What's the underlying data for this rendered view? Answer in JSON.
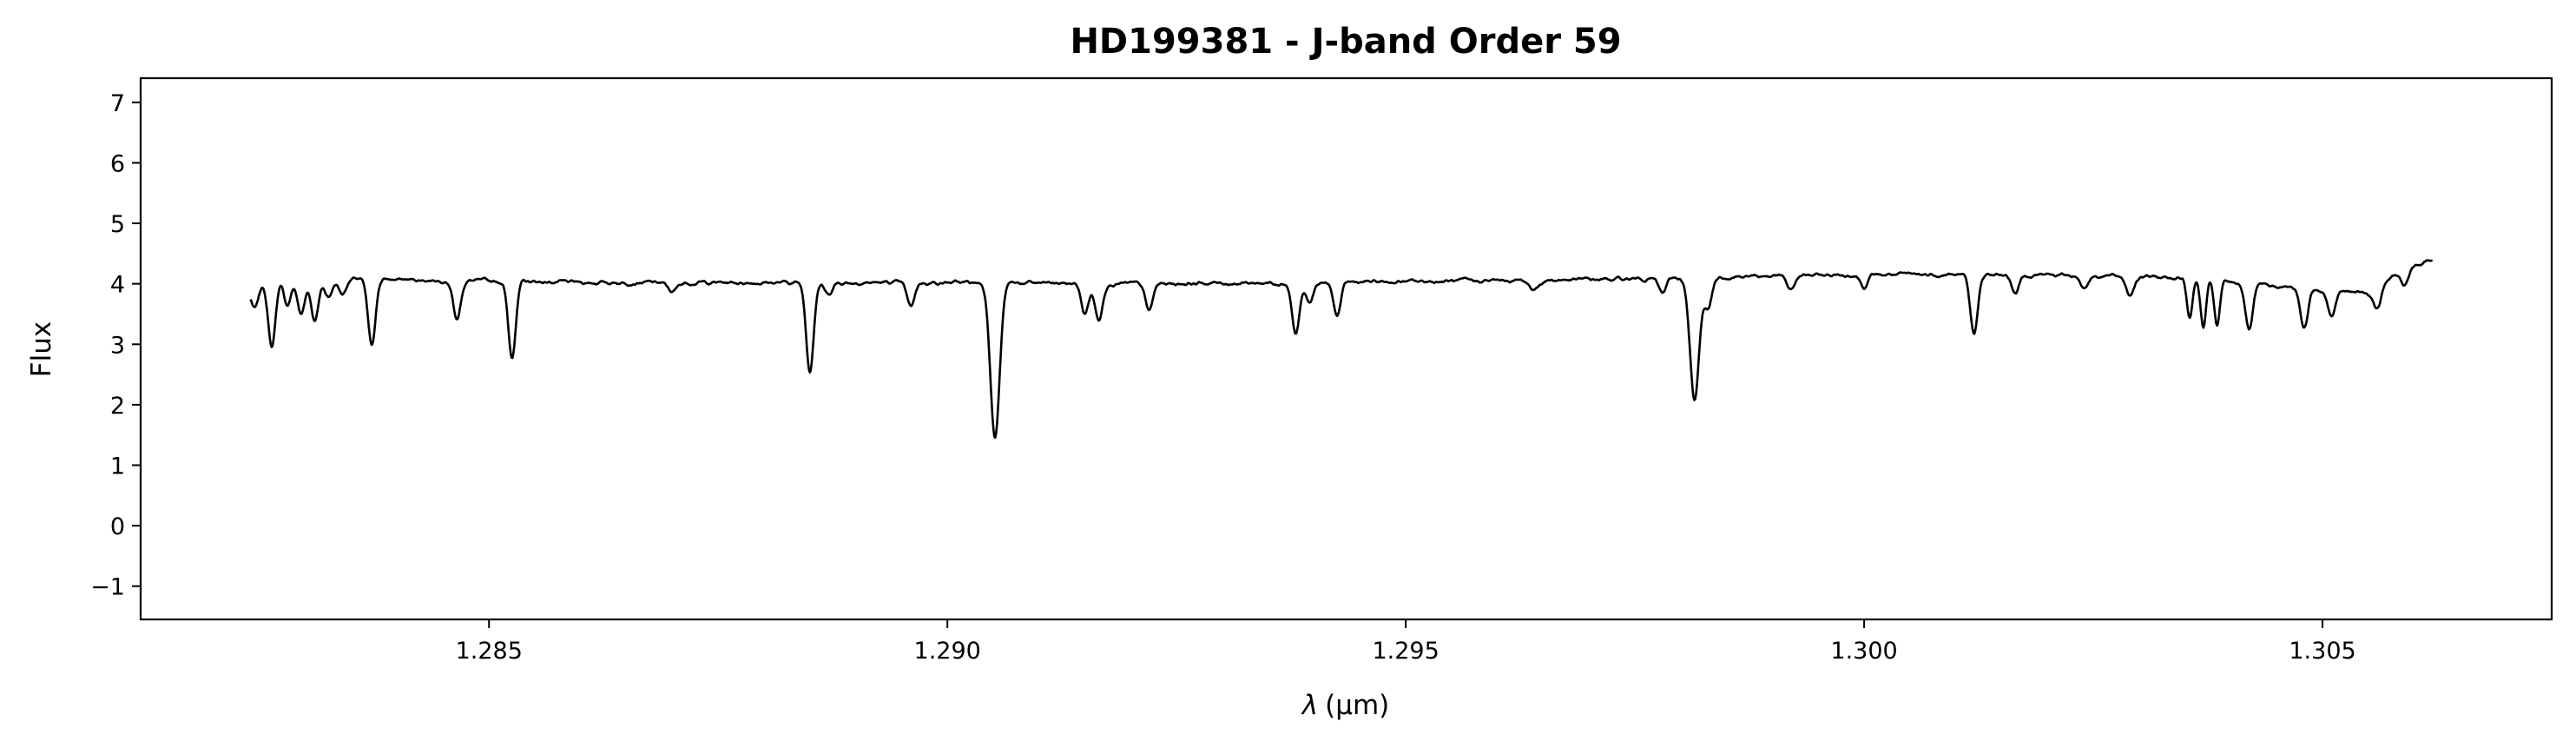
{
  "chart_data": {
    "type": "line",
    "title": "HD199381 - J-band Order 59",
    "xlabel": "λ (μm)",
    "xlabel_symbol": "λ",
    "xlabel_unit": "(μm)",
    "ylabel": "Flux",
    "xlim": [
      1.2812,
      1.3075
    ],
    "ylim": [
      -1.55,
      7.4
    ],
    "xticks": [
      1.285,
      1.29,
      1.295,
      1.3,
      1.305
    ],
    "xtick_labels": [
      "1.285",
      "1.290",
      "1.295",
      "1.300",
      "1.305"
    ],
    "yticks": [
      -1,
      0,
      1,
      2,
      3,
      4,
      5,
      6,
      7
    ],
    "ytick_labels": [
      "−1",
      "0",
      "1",
      "2",
      "3",
      "4",
      "5",
      "6",
      "7"
    ],
    "grid": false,
    "line_color": "#000000",
    "series": [
      {
        "x_range": [
          1.2824,
          1.3062
        ],
        "continuum": [
          [
            1.2824,
            3.9
          ],
          [
            1.2826,
            4.1
          ],
          [
            1.284,
            4.07
          ],
          [
            1.286,
            4.02
          ],
          [
            1.288,
            4.02
          ],
          [
            1.29,
            4.02
          ],
          [
            1.292,
            4.0
          ],
          [
            1.294,
            4.02
          ],
          [
            1.296,
            4.05
          ],
          [
            1.2975,
            4.08
          ],
          [
            1.2985,
            4.12
          ],
          [
            1.3,
            4.15
          ],
          [
            1.302,
            4.15
          ],
          [
            1.3035,
            4.1
          ],
          [
            1.3045,
            3.95
          ],
          [
            1.3055,
            3.85
          ],
          [
            1.3058,
            4.15
          ],
          [
            1.3062,
            4.42
          ]
        ],
        "absorption_lines": [
          {
            "x": 1.28245,
            "depth": 0.35,
            "width": 4e-05
          },
          {
            "x": 1.28263,
            "depth": 1.15,
            "width": 4e-05
          },
          {
            "x": 1.2828,
            "depth": 0.45,
            "width": 4e-05
          },
          {
            "x": 1.28295,
            "depth": 0.6,
            "width": 4e-05
          },
          {
            "x": 1.2831,
            "depth": 0.7,
            "width": 4e-05
          },
          {
            "x": 1.28325,
            "depth": 0.3,
            "width": 4e-05
          },
          {
            "x": 1.2834,
            "depth": 0.25,
            "width": 4e-05
          },
          {
            "x": 1.28372,
            "depth": 1.1,
            "width": 4e-05
          },
          {
            "x": 1.28465,
            "depth": 0.65,
            "width": 4e-05
          },
          {
            "x": 1.28525,
            "depth": 1.25,
            "width": 4e-05
          },
          {
            "x": 1.287,
            "depth": 0.15,
            "width": 5e-05
          },
          {
            "x": 1.2885,
            "depth": 1.45,
            "width": 4e-05
          },
          {
            "x": 1.2887,
            "depth": 0.2,
            "width": 4e-05
          },
          {
            "x": 1.2896,
            "depth": 0.4,
            "width": 4e-05
          },
          {
            "x": 1.29052,
            "depth": 2.55,
            "width": 5e-05
          },
          {
            "x": 1.2915,
            "depth": 0.5,
            "width": 4e-05
          },
          {
            "x": 1.29165,
            "depth": 0.6,
            "width": 4e-05
          },
          {
            "x": 1.2922,
            "depth": 0.45,
            "width": 4e-05
          },
          {
            "x": 1.2938,
            "depth": 0.85,
            "width": 4e-05
          },
          {
            "x": 1.29395,
            "depth": 0.35,
            "width": 4e-05
          },
          {
            "x": 1.29425,
            "depth": 0.55,
            "width": 4e-05
          },
          {
            "x": 1.2964,
            "depth": 0.15,
            "width": 5e-05
          },
          {
            "x": 1.2978,
            "depth": 0.25,
            "width": 4e-05
          },
          {
            "x": 1.29815,
            "depth": 2.05,
            "width": 5e-05
          },
          {
            "x": 1.2983,
            "depth": 0.5,
            "width": 4e-05
          },
          {
            "x": 1.2992,
            "depth": 0.25,
            "width": 4e-05
          },
          {
            "x": 1.3,
            "depth": 0.2,
            "width": 4e-05
          },
          {
            "x": 1.3012,
            "depth": 1.0,
            "width": 4e-05
          },
          {
            "x": 1.30165,
            "depth": 0.3,
            "width": 4e-05
          },
          {
            "x": 1.3024,
            "depth": 0.2,
            "width": 4e-05
          },
          {
            "x": 1.3029,
            "depth": 0.3,
            "width": 4e-05
          },
          {
            "x": 1.30355,
            "depth": 0.65,
            "width": 3e-05
          },
          {
            "x": 1.3037,
            "depth": 0.8,
            "width": 3e-05
          },
          {
            "x": 1.30385,
            "depth": 0.75,
            "width": 3e-05
          },
          {
            "x": 1.3042,
            "depth": 0.75,
            "width": 4e-05
          },
          {
            "x": 1.3048,
            "depth": 0.65,
            "width": 4e-05
          },
          {
            "x": 1.3051,
            "depth": 0.4,
            "width": 4e-05
          },
          {
            "x": 1.3056,
            "depth": 0.35,
            "width": 4e-05
          },
          {
            "x": 1.3059,
            "depth": 0.25,
            "width": 4e-05
          }
        ]
      }
    ]
  }
}
